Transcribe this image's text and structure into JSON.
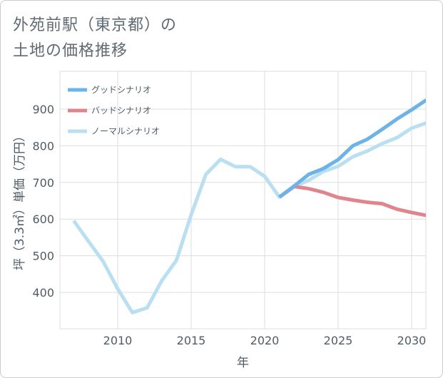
{
  "chart_data": {
    "type": "line",
    "title": "外苑前駅（東京都）の\n土地の価格推移",
    "xlabel": "年",
    "ylabel": "坪（3.3㎡）単価（万円）",
    "xlim": [
      2006,
      2031
    ],
    "ylim": [
      300,
      1000
    ],
    "xticks": [
      2010,
      2015,
      2020,
      2025,
      2030
    ],
    "yticks": [
      400,
      500,
      600,
      700,
      800,
      900
    ],
    "grid": true,
    "legend_position": "top-left",
    "series": [
      {
        "name": "グッドシナリオ",
        "color": "#6cb4e8",
        "points": [
          [
            2021,
            660
          ],
          [
            2022,
            690
          ],
          [
            2023,
            722
          ],
          [
            2024,
            738
          ],
          [
            2025,
            762
          ],
          [
            2026,
            800
          ],
          [
            2027,
            818
          ],
          [
            2028,
            845
          ],
          [
            2029,
            873
          ],
          [
            2030,
            898
          ],
          [
            2031,
            925
          ]
        ]
      },
      {
        "name": "バッドシナリオ",
        "color": "#e0848e",
        "points": [
          [
            2021,
            660
          ],
          [
            2022,
            689
          ],
          [
            2023,
            683
          ],
          [
            2024,
            673
          ],
          [
            2025,
            659
          ],
          [
            2026,
            652
          ],
          [
            2027,
            646
          ],
          [
            2028,
            642
          ],
          [
            2029,
            627
          ],
          [
            2030,
            618
          ],
          [
            2031,
            610
          ]
        ]
      },
      {
        "name": "ノーマルシナリオ",
        "color": "#b9dff0",
        "points": [
          [
            2007,
            596
          ],
          [
            2008,
            540
          ],
          [
            2009,
            485
          ],
          [
            2010,
            410
          ],
          [
            2011,
            345
          ],
          [
            2012,
            358
          ],
          [
            2013,
            432
          ],
          [
            2014,
            488
          ],
          [
            2015,
            612
          ],
          [
            2016,
            722
          ],
          [
            2017,
            763
          ],
          [
            2018,
            743
          ],
          [
            2019,
            743
          ],
          [
            2020,
            717
          ],
          [
            2021,
            660
          ],
          [
            2022,
            688
          ],
          [
            2023,
            706
          ],
          [
            2024,
            730
          ],
          [
            2025,
            744
          ],
          [
            2026,
            770
          ],
          [
            2027,
            786
          ],
          [
            2028,
            806
          ],
          [
            2029,
            822
          ],
          [
            2030,
            848
          ],
          [
            2031,
            862
          ]
        ]
      }
    ]
  }
}
